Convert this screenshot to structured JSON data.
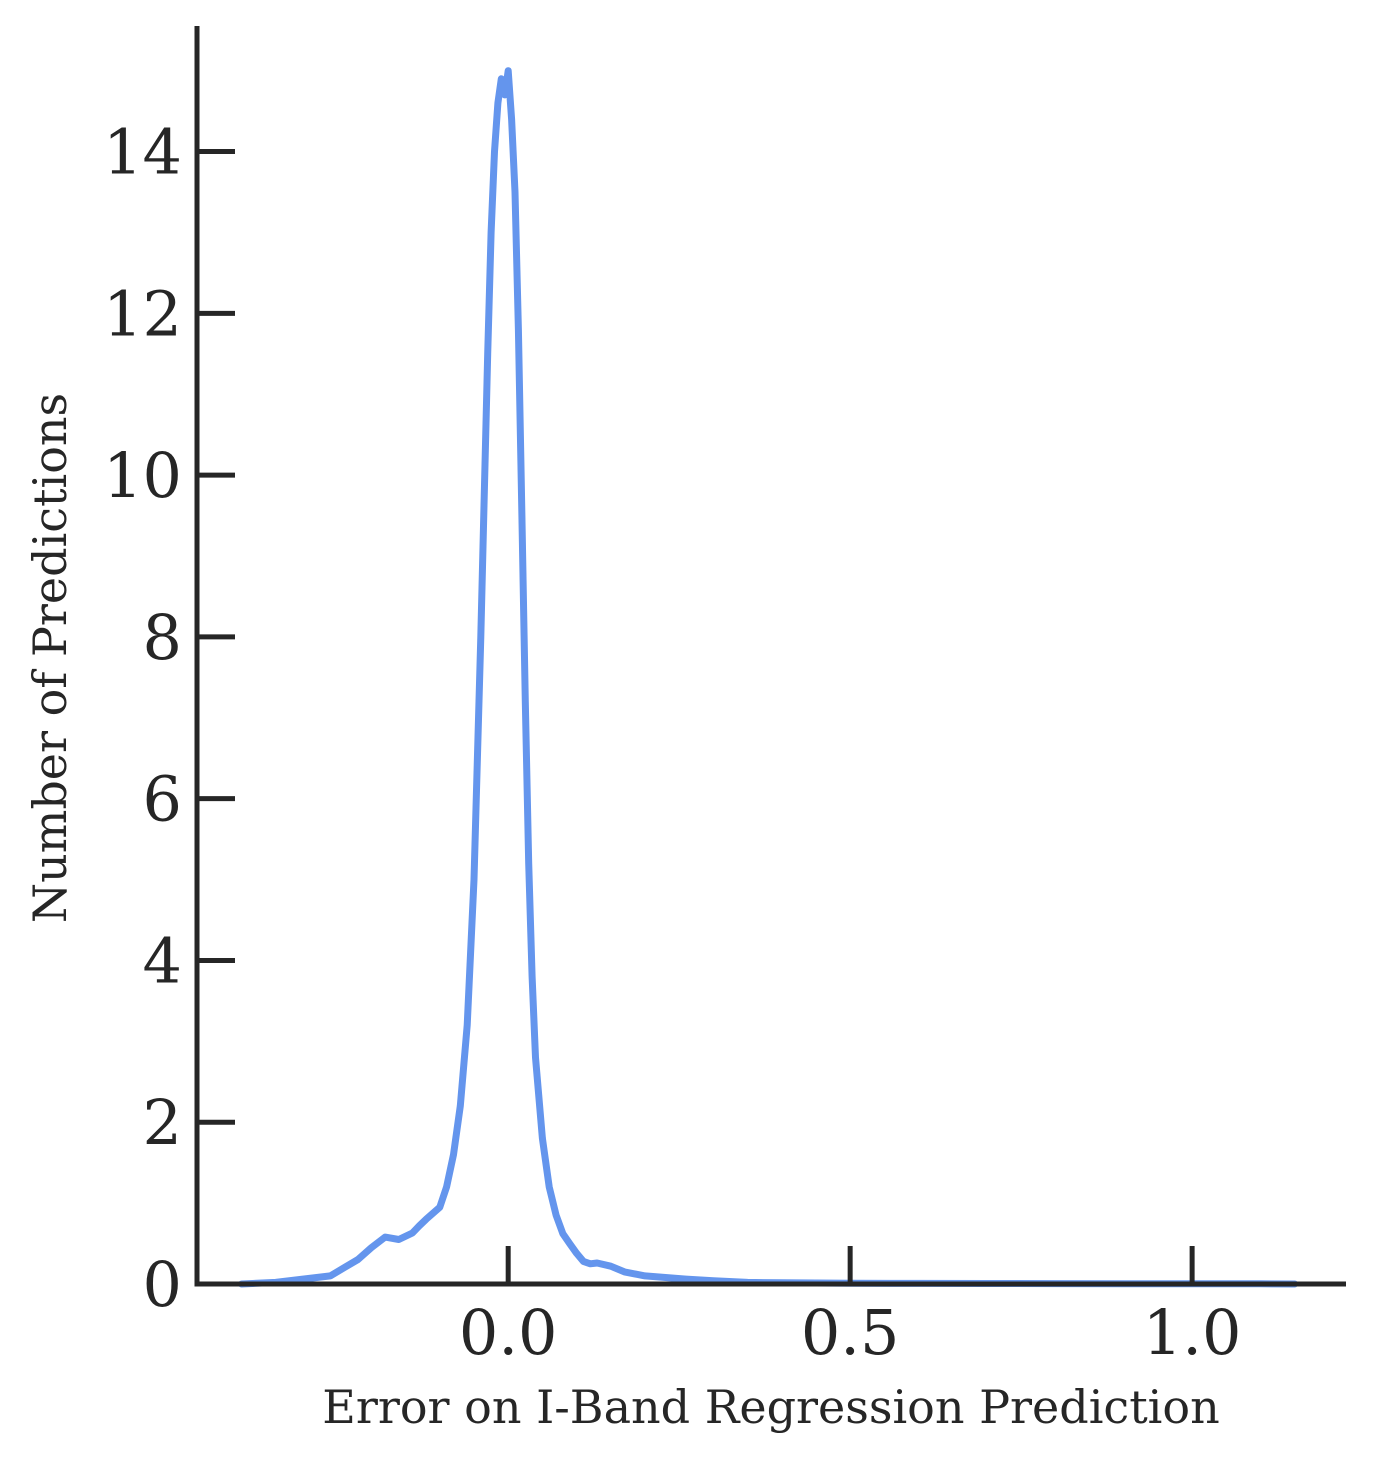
{
  "chart_data": {
    "type": "line",
    "xlabel": "Error on I-Band Regression Prediction",
    "ylabel": "Number of Predictions",
    "xlim": [
      -0.455,
      1.225
    ],
    "ylim": [
      0,
      15.75
    ],
    "x_ticks": [
      {
        "value": 0.0,
        "label": "0.0"
      },
      {
        "value": 0.5,
        "label": "0.5"
      },
      {
        "value": 1.0,
        "label": "1.0"
      }
    ],
    "y_ticks": [
      {
        "value": 0,
        "label": "0"
      },
      {
        "value": 2,
        "label": "2"
      },
      {
        "value": 4,
        "label": "4"
      },
      {
        "value": 6,
        "label": "6"
      },
      {
        "value": 8,
        "label": "8"
      },
      {
        "value": 10,
        "label": "10"
      },
      {
        "value": 12,
        "label": "12"
      },
      {
        "value": 14,
        "label": "14"
      }
    ],
    "grid": false,
    "color": "#6495ED",
    "series": [
      {
        "x": [
          -0.39,
          -0.34,
          -0.3,
          -0.26,
          -0.24,
          -0.22,
          -0.2,
          -0.18,
          -0.16,
          -0.14,
          -0.13,
          -0.12,
          -0.1,
          -0.09,
          -0.08,
          -0.07,
          -0.06,
          -0.05,
          -0.04,
          -0.03,
          -0.025,
          -0.02,
          -0.015,
          -0.01,
          -0.005,
          0.0,
          0.005,
          0.01,
          0.015,
          0.02,
          0.025,
          0.03,
          0.035,
          0.04,
          0.05,
          0.06,
          0.07,
          0.08,
          0.09,
          0.1,
          0.11,
          0.12,
          0.13,
          0.15,
          0.17,
          0.2,
          0.23,
          0.26,
          0.3,
          0.35,
          0.4,
          0.5,
          0.6,
          0.7,
          0.8,
          0.9,
          1.0,
          1.1,
          1.15
        ],
        "y": [
          0.0,
          0.02,
          0.06,
          0.1,
          0.2,
          0.3,
          0.45,
          0.58,
          0.55,
          0.63,
          0.72,
          0.8,
          0.95,
          1.2,
          1.6,
          2.2,
          3.2,
          5.0,
          8.0,
          11.5,
          13.0,
          14.0,
          14.6,
          14.9,
          14.7,
          15.0,
          14.4,
          13.5,
          11.8,
          9.5,
          7.2,
          5.2,
          3.8,
          2.8,
          1.8,
          1.2,
          0.85,
          0.62,
          0.5,
          0.38,
          0.28,
          0.25,
          0.26,
          0.22,
          0.15,
          0.1,
          0.08,
          0.06,
          0.04,
          0.02,
          0.015,
          0.01,
          0.008,
          0.006,
          0.005,
          0.004,
          0.003,
          0.002,
          0.0
        ]
      }
    ]
  }
}
